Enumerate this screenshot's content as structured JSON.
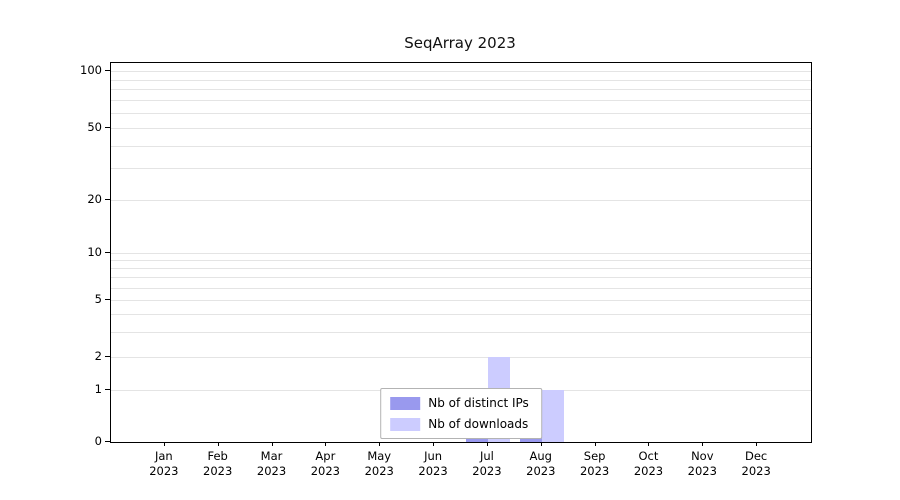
{
  "chart_data": {
    "type": "bar",
    "title": "SeqArray 2023",
    "categories": [
      "Jan",
      "Feb",
      "Mar",
      "Apr",
      "May",
      "Jun",
      "Jul",
      "Aug",
      "Sep",
      "Oct",
      "Nov",
      "Dec"
    ],
    "year_label": "2023",
    "series": [
      {
        "name": "Nb of distinct IPs",
        "color": "#9999ee",
        "values": [
          0,
          0,
          0,
          0,
          0,
          0,
          1,
          1,
          0,
          0,
          0,
          0
        ]
      },
      {
        "name": "Nb of downloads",
        "color": "#ccccff",
        "values": [
          0,
          0,
          0,
          0,
          0,
          0,
          2,
          1,
          0,
          0,
          0,
          0
        ]
      }
    ],
    "y_ticks": [
      0,
      1,
      2,
      5,
      10,
      20,
      50,
      100
    ],
    "ylim": [
      0,
      100
    ],
    "y_scale": "log-like with zero baseline",
    "grid": "horizontal, minor log ticks, light gray",
    "legend_position": "inside bottom center",
    "axis_color": "#000000",
    "grid_color": "#e4e4e4"
  }
}
